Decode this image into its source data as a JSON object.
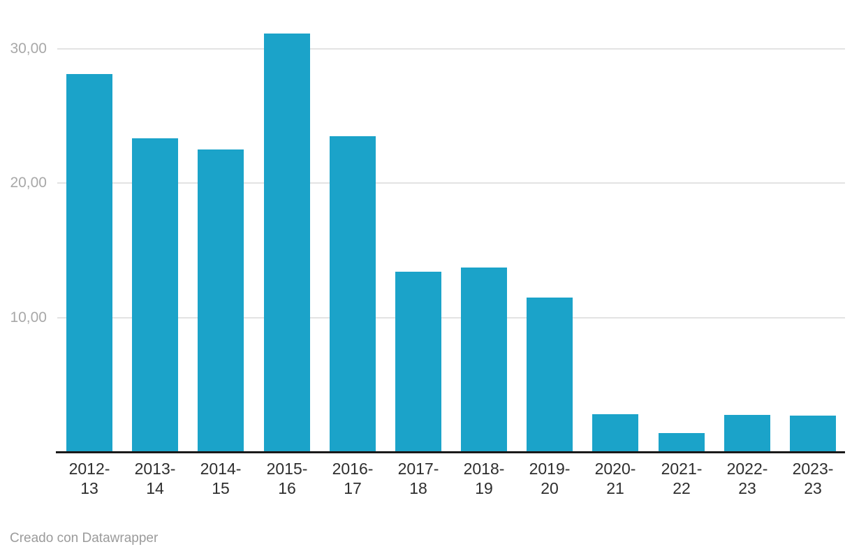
{
  "chart_data": {
    "type": "bar",
    "title": "",
    "xlabel": "",
    "ylabel": "",
    "categories": [
      "2012-13",
      "2013-14",
      "2014-15",
      "2015-16",
      "2016-17",
      "2017-18",
      "2018-19",
      "2019-20",
      "2020-21",
      "2021-22",
      "2022-23",
      "2023-23"
    ],
    "values": [
      28.1,
      23.3,
      22.5,
      31.1,
      23.5,
      13.4,
      13.7,
      11.5,
      2.8,
      1.4,
      2.75,
      2.7
    ],
    "ylim": [
      0,
      32
    ],
    "y_ticks": [
      {
        "value": 30,
        "label": "30,00"
      },
      {
        "value": 20,
        "label": "20,00"
      },
      {
        "value": 10,
        "label": "10,00"
      }
    ],
    "grid": "horizontal",
    "legend": "none",
    "bar_color": "#1ba3c9",
    "number_format": "decimal-comma"
  },
  "footer": {
    "credit": "Creado con Datawrapper"
  }
}
